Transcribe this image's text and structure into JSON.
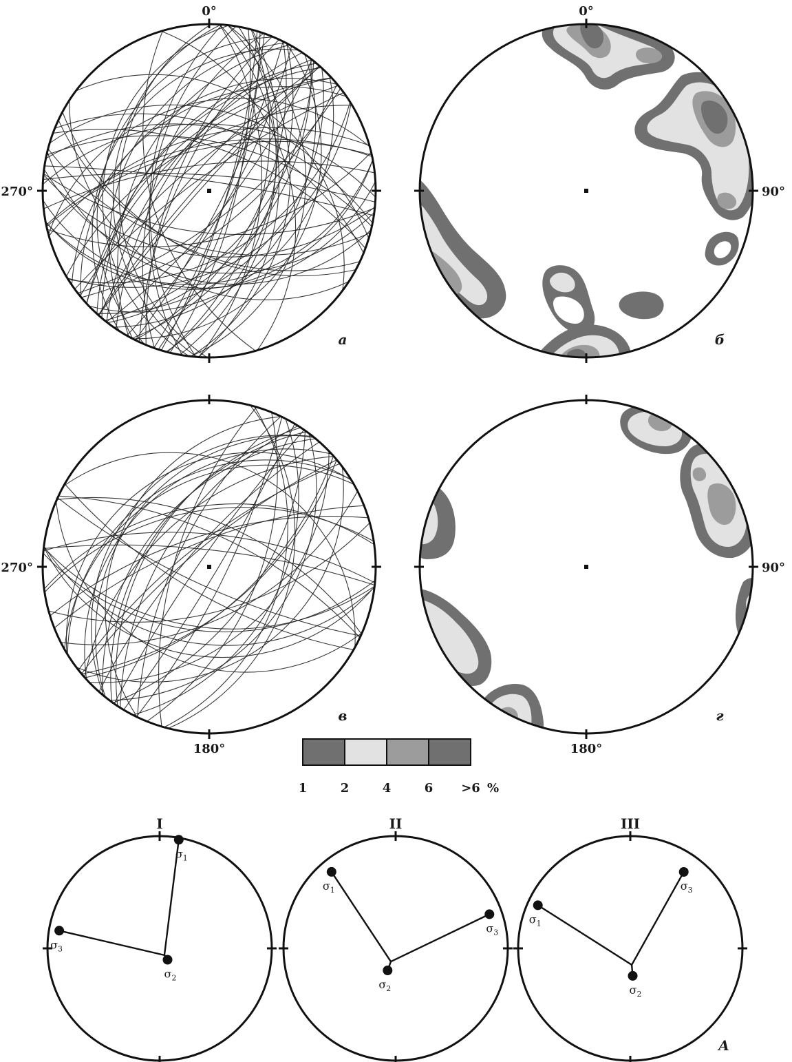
{
  "labels": {
    "deg_0": "0°",
    "deg_90": "90°",
    "deg_180": "180°",
    "deg_270": "270°",
    "panel_a": "а",
    "panel_b": "б",
    "panel_v": "в",
    "panel_g": "г",
    "panel_A": "А",
    "stereo_1": "I",
    "stereo_2": "II",
    "stereo_3": "III",
    "sigma": "σ"
  },
  "legend": {
    "ticks": [
      "1",
      "2",
      "4",
      "6",
      ">6"
    ],
    "unit": "%",
    "colors": [
      "#707070",
      "#e2e2e2",
      "#9c9c9c",
      "#707070"
    ]
  },
  "colors": {
    "contour_low": "#707070",
    "contour_mid": "#e2e2e2",
    "contour_high": "#9c9c9c",
    "contour_max": "#707070",
    "stroke": "#111111"
  },
  "stress_axes": [
    {
      "name": "I",
      "sigma": [
        {
          "index": "1",
          "azimuth": 10,
          "plunge": 2
        },
        {
          "index": "2",
          "azimuth": 145,
          "plunge": 80
        },
        {
          "index": "3",
          "azimuth": 280,
          "plunge": 10
        }
      ]
    },
    {
      "name": "II",
      "sigma": [
        {
          "index": "1",
          "azimuth": 320,
          "plunge": 12
        },
        {
          "index": "2",
          "azimuth": 200,
          "plunge": 73
        },
        {
          "index": "3",
          "azimuth": 70,
          "plunge": 12
        }
      ]
    },
    {
      "name": "III",
      "sigma": [
        {
          "index": "1",
          "azimuth": 295,
          "plunge": 10
        },
        {
          "index": "2",
          "azimuth": 175,
          "plunge": 70
        },
        {
          "index": "3",
          "azimuth": 35,
          "plunge": 18
        }
      ]
    }
  ]
}
